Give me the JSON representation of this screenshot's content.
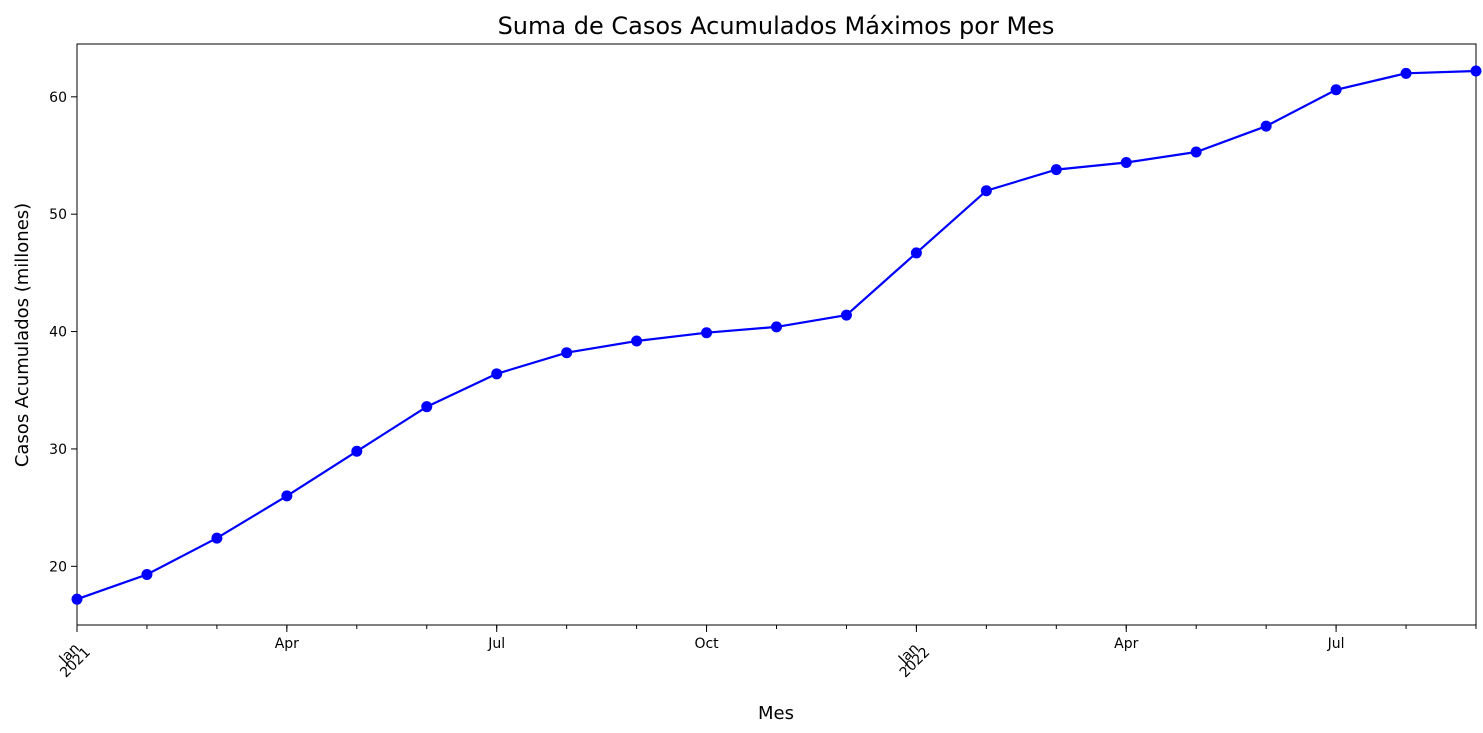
{
  "chart_data": {
    "type": "line",
    "title": "Suma de Casos Acumulados Máximos por Mes",
    "xlabel": "Mes",
    "ylabel": "Casos Acumulados (millones)",
    "x": [
      "2021-01",
      "2021-02",
      "2021-03",
      "2021-04",
      "2021-05",
      "2021-06",
      "2021-07",
      "2021-08",
      "2021-09",
      "2021-10",
      "2021-11",
      "2021-12",
      "2022-01",
      "2022-02",
      "2022-03",
      "2022-04",
      "2022-05",
      "2022-06",
      "2022-07",
      "2022-08",
      "2022-09"
    ],
    "series": [
      {
        "color": "#0000ff",
        "values": [
          17.2,
          19.3,
          22.4,
          26.0,
          29.8,
          33.6,
          36.4,
          38.2,
          39.2,
          39.9,
          40.4,
          41.4,
          46.7,
          52.0,
          53.8,
          54.4,
          55.3,
          57.5,
          60.6,
          62.0,
          62.2
        ]
      }
    ],
    "xlim": [
      "2021-01",
      "2022-09"
    ],
    "ylim": [
      15,
      64.5
    ],
    "y_ticks": [
      20,
      30,
      40,
      50,
      60
    ],
    "x_major_ticks": [
      {
        "x": "2021-01",
        "label": "Jan",
        "sublabel": "2021"
      },
      {
        "x": "2021-04",
        "label": "Apr"
      },
      {
        "x": "2021-07",
        "label": "Jul"
      },
      {
        "x": "2021-10",
        "label": "Oct"
      },
      {
        "x": "2022-01",
        "label": "Jan",
        "sublabel": "2022"
      },
      {
        "x": "2022-04",
        "label": "Apr"
      },
      {
        "x": "2022-07",
        "label": "Jul"
      }
    ],
    "grid": false,
    "legend": "none"
  }
}
